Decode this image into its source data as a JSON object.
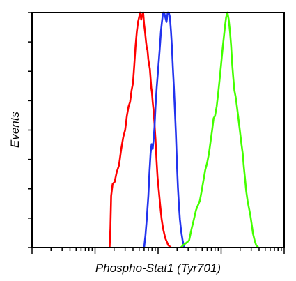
{
  "chart_data": {
    "type": "line",
    "xlabel": "Phospho-Stat1 (Tyr701)",
    "ylabel": "Events",
    "x_scale": "log",
    "xlim": [
      1,
      10000
    ],
    "ylim": [
      0,
      100
    ],
    "grid": false,
    "legend": "none",
    "series": [
      {
        "color": "#ff0000",
        "points": [
          [
            17,
            0
          ],
          [
            17.5,
            8
          ],
          [
            18,
            22
          ],
          [
            19,
            27
          ],
          [
            20.5,
            28
          ],
          [
            22,
            32
          ],
          [
            24,
            35
          ],
          [
            26,
            42
          ],
          [
            28,
            47
          ],
          [
            30,
            50
          ],
          [
            32,
            56
          ],
          [
            34,
            60
          ],
          [
            36,
            62
          ],
          [
            38,
            67
          ],
          [
            40,
            70
          ],
          [
            42,
            78
          ],
          [
            44,
            86
          ],
          [
            46,
            92
          ],
          [
            48,
            96
          ],
          [
            50,
            98
          ],
          [
            52,
            100
          ],
          [
            54,
            97
          ],
          [
            56,
            99
          ],
          [
            58,
            100
          ],
          [
            60,
            95
          ],
          [
            62,
            92
          ],
          [
            64,
            88
          ],
          [
            66,
            85
          ],
          [
            68,
            84
          ],
          [
            70,
            80
          ],
          [
            72,
            78
          ],
          [
            74,
            76
          ],
          [
            76,
            72
          ],
          [
            78,
            68
          ],
          [
            80,
            66
          ],
          [
            82,
            62
          ],
          [
            85,
            58
          ],
          [
            88,
            52
          ],
          [
            91,
            46
          ],
          [
            94,
            38
          ],
          [
            98,
            30
          ],
          [
            102,
            25
          ],
          [
            108,
            18
          ],
          [
            114,
            12
          ],
          [
            120,
            8
          ],
          [
            130,
            4
          ],
          [
            145,
            1
          ],
          [
            160,
            0
          ]
        ]
      },
      {
        "color": "#2233ee",
        "points": [
          [
            60,
            0
          ],
          [
            63,
            5
          ],
          [
            66,
            12
          ],
          [
            70,
            22
          ],
          [
            73,
            32
          ],
          [
            76,
            40
          ],
          [
            79,
            44
          ],
          [
            82,
            42
          ],
          [
            85,
            46
          ],
          [
            88,
            52
          ],
          [
            91,
            60
          ],
          [
            95,
            68
          ],
          [
            99,
            74
          ],
          [
            103,
            80
          ],
          [
            107,
            86
          ],
          [
            111,
            92
          ],
          [
            115,
            96
          ],
          [
            120,
            100
          ],
          [
            125,
            100
          ],
          [
            130,
            98
          ],
          [
            136,
            96
          ],
          [
            142,
            100
          ],
          [
            148,
            100
          ],
          [
            154,
            98
          ],
          [
            160,
            92
          ],
          [
            166,
            85
          ],
          [
            172,
            76
          ],
          [
            178,
            68
          ],
          [
            185,
            58
          ],
          [
            192,
            48
          ],
          [
            199,
            36
          ],
          [
            206,
            26
          ],
          [
            214,
            18
          ],
          [
            222,
            12
          ],
          [
            232,
            7
          ],
          [
            245,
            3
          ],
          [
            260,
            0
          ]
        ]
      },
      {
        "color": "#44ff00",
        "points": [
          [
            230,
            0
          ],
          [
            250,
            1
          ],
          [
            280,
            2
          ],
          [
            310,
            3
          ],
          [
            340,
            8
          ],
          [
            370,
            12
          ],
          [
            400,
            16
          ],
          [
            430,
            18
          ],
          [
            460,
            20
          ],
          [
            490,
            24
          ],
          [
            520,
            28
          ],
          [
            560,
            33
          ],
          [
            600,
            36
          ],
          [
            640,
            40
          ],
          [
            680,
            45
          ],
          [
            720,
            50
          ],
          [
            760,
            55
          ],
          [
            800,
            56
          ],
          [
            850,
            60
          ],
          [
            900,
            66
          ],
          [
            950,
            72
          ],
          [
            1000,
            78
          ],
          [
            1050,
            84
          ],
          [
            1100,
            89
          ],
          [
            1150,
            94
          ],
          [
            1200,
            98
          ],
          [
            1260,
            100
          ],
          [
            1320,
            97
          ],
          [
            1380,
            92
          ],
          [
            1440,
            86
          ],
          [
            1500,
            78
          ],
          [
            1560,
            72
          ],
          [
            1620,
            67
          ],
          [
            1700,
            64
          ],
          [
            1780,
            60
          ],
          [
            1860,
            56
          ],
          [
            1940,
            52
          ],
          [
            2020,
            48
          ],
          [
            2100,
            44
          ],
          [
            2200,
            40
          ],
          [
            2300,
            34
          ],
          [
            2400,
            29
          ],
          [
            2500,
            24
          ],
          [
            2620,
            20
          ],
          [
            2750,
            17
          ],
          [
            2900,
            14
          ],
          [
            3050,
            10
          ],
          [
            3200,
            6
          ],
          [
            3400,
            3
          ],
          [
            3600,
            1
          ],
          [
            3900,
            0
          ]
        ]
      }
    ]
  }
}
